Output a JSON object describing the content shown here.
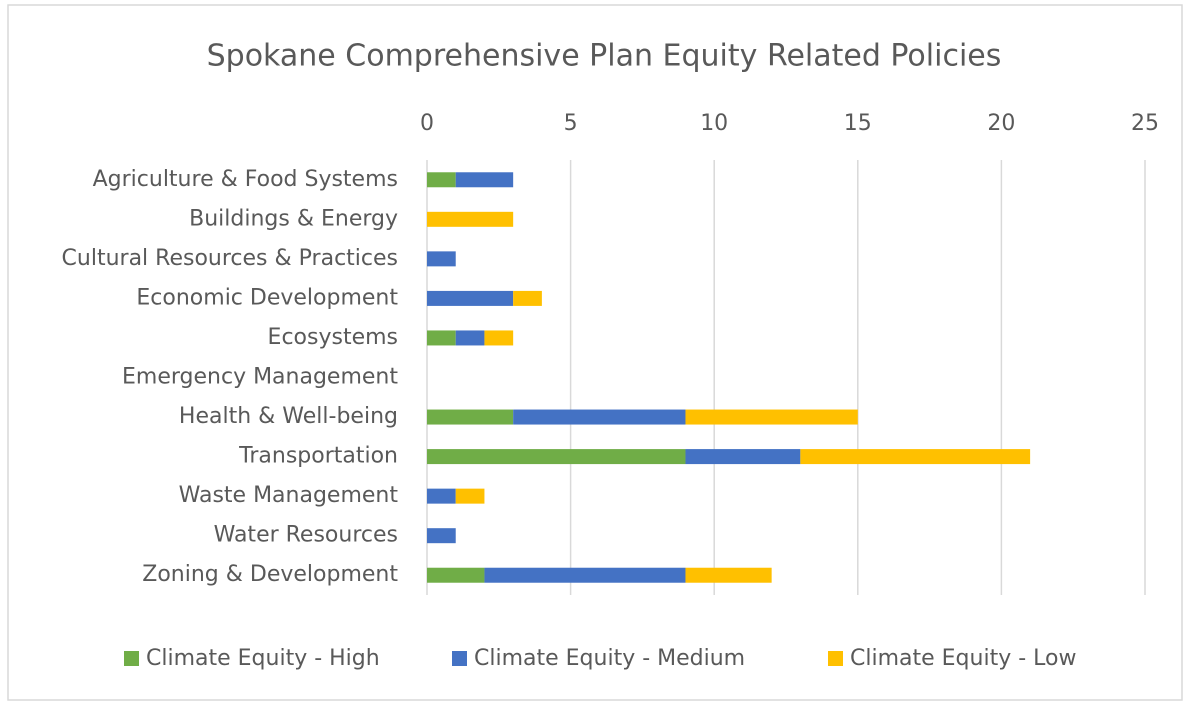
{
  "chart_data": {
    "type": "stacked-bar-horizontal",
    "title": "Spokane Comprehensive Plan Equity Related Policies",
    "categories": [
      "Agriculture & Food Systems",
      "Buildings & Energy",
      "Cultural Resources & Practices",
      "Economic Development",
      "Ecosystems",
      "Emergency Management",
      "Health & Well-being",
      "Transportation",
      "Waste Management",
      "Water Resources",
      "Zoning & Development"
    ],
    "series": [
      {
        "name": "Climate Equity - High",
        "color": "#70ad47",
        "values": [
          1,
          0,
          0,
          0,
          1,
          0,
          3,
          9,
          0,
          0,
          2
        ]
      },
      {
        "name": "Climate Equity - Medium",
        "color": "#4472c4",
        "values": [
          2,
          0,
          1,
          3,
          1,
          0,
          6,
          4,
          1,
          1,
          7
        ]
      },
      {
        "name": "Climate Equity - Low",
        "color": "#ffc000",
        "values": [
          0,
          3,
          0,
          1,
          1,
          0,
          6,
          8,
          1,
          0,
          3
        ]
      }
    ],
    "xlim": [
      0,
      25
    ],
    "xticks": [
      0,
      5,
      10,
      15,
      20,
      25
    ],
    "grid": true,
    "legend": "bottom"
  }
}
